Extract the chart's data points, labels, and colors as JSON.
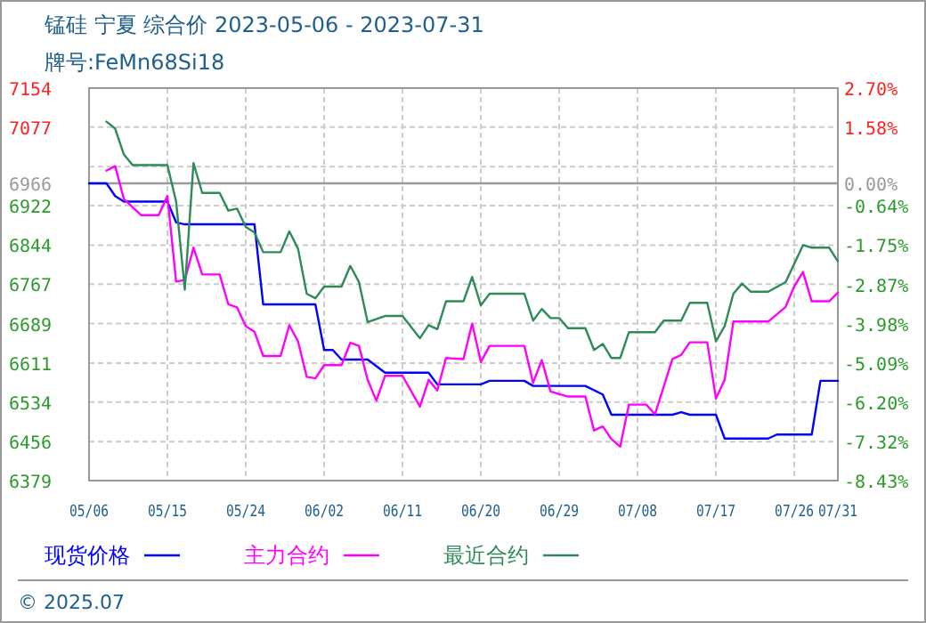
{
  "chart_data": {
    "type": "line",
    "title": "锰硅 宁夏 综合价 2023-05-06 - 2023-07-31",
    "subtitle": "牌号:FeMn68Si18",
    "annotations": [
      "© 2025.07"
    ],
    "series": [
      {
        "name": "现货价格",
        "color": "#0000ff",
        "x": [
          "--05-06",
          "--05-08",
          "--05-09",
          "--05-10",
          "--05-15",
          "--05-16",
          "--05-17",
          "--05-25",
          "--05-26",
          "--06-01",
          "--06-02",
          "--06-03",
          "--06-04",
          "--06-07",
          "--06-09",
          "--06-14",
          "--06-15",
          "--06-20",
          "--06-21",
          "--06-25",
          "--06-26",
          "--07-02",
          "--07-04",
          "--07-05",
          "--07-12",
          "--07-13",
          "--07-14",
          "--07-17",
          "--07-18",
          "--07-23",
          "--07-24",
          "--07-28",
          "--07-29",
          "--07-31"
        ],
        "values": [
          6966,
          6966,
          6941,
          6930,
          6930,
          6889,
          6885,
          6885,
          6727,
          6727,
          6637,
          6637,
          6618,
          6618,
          6592,
          6592,
          6569,
          6569,
          6576,
          6576,
          6566,
          6566,
          6549,
          6509,
          6509,
          6514,
          6509,
          6509,
          6462,
          6462,
          6470,
          6470,
          6576,
          6576
        ]
      },
      {
        "name": "主力合约",
        "color": "#ff00ff",
        "x": [
          "--05-08",
          "--05-09",
          "--05-10",
          "--05-12",
          "--05-14",
          "--05-15",
          "--05-16",
          "--05-17",
          "--05-18",
          "--05-19",
          "--05-21",
          "--05-22",
          "--05-23",
          "--05-24",
          "--05-25",
          "--05-26",
          "--05-28",
          "--05-29",
          "--05-30",
          "--05-31",
          "--06-01",
          "--06-02",
          "--06-04",
          "--06-05",
          "--06-06",
          "--06-07",
          "--06-08",
          "--06-09",
          "--06-11",
          "--06-13",
          "--06-14",
          "--06-15",
          "--06-16",
          "--06-18",
          "--06-19",
          "--06-20",
          "--06-21",
          "--06-25",
          "--06-26",
          "--06-27",
          "--06-28",
          "--06-30",
          "--07-02",
          "--07-03",
          "--07-04",
          "--07-05",
          "--07-06",
          "--07-07",
          "--07-09",
          "--07-10",
          "--07-12",
          "--07-13",
          "--07-14",
          "--07-16",
          "--07-17",
          "--07-18",
          "--07-19",
          "--07-20",
          "--07-23",
          "--07-25",
          "--07-26",
          "--07-27",
          "--07-28",
          "--07-30",
          "--07-31"
        ],
        "values": [
          6991,
          7000,
          6935,
          6903,
          6903,
          6941,
          6772,
          6775,
          6839,
          6786,
          6786,
          6727,
          6721,
          6684,
          6673,
          6625,
          6625,
          6686,
          6654,
          6584,
          6581,
          6607,
          6607,
          6651,
          6645,
          6578,
          6537,
          6586,
          6586,
          6525,
          6578,
          6557,
          6621,
          6619,
          6689,
          6613,
          6645,
          6645,
          6572,
          6617,
          6555,
          6545,
          6545,
          6478,
          6486,
          6461,
          6446,
          6529,
          6529,
          6510,
          6619,
          6627,
          6652,
          6652,
          6541,
          6578,
          6693,
          6693,
          6693,
          6722,
          6763,
          6791,
          6733,
          6733,
          6750
        ]
      },
      {
        "name": "最近合约",
        "color": "#2e8b57",
        "x": [
          "--05-08",
          "--05-09",
          "--05-10",
          "--05-11",
          "--05-15",
          "--05-16",
          "--05-17",
          "--05-18",
          "--05-19",
          "--05-21",
          "--05-22",
          "--05-23",
          "--05-24",
          "--05-25",
          "--05-26",
          "--05-28",
          "--05-29",
          "--05-30",
          "--05-31",
          "--06-01",
          "--06-02",
          "--06-04",
          "--06-05",
          "--06-06",
          "--06-07",
          "--06-09",
          "--06-11",
          "--06-13",
          "--06-14",
          "--06-15",
          "--06-16",
          "--06-18",
          "--06-19",
          "--06-20",
          "--06-21",
          "--06-25",
          "--06-26",
          "--06-27",
          "--06-28",
          "--06-29",
          "--06-30",
          "--07-02",
          "--07-03",
          "--07-04",
          "--07-05",
          "--07-06",
          "--07-07",
          "--07-10",
          "--07-11",
          "--07-13",
          "--07-14",
          "--07-16",
          "--07-17",
          "--07-18",
          "--07-19",
          "--07-20",
          "--07-21",
          "--07-23",
          "--07-25",
          "--07-27",
          "--07-28",
          "--07-30",
          "--07-31"
        ],
        "values": [
          7088,
          7074,
          7023,
          7002,
          7002,
          6930,
          6756,
          7006,
          6947,
          6947,
          6912,
          6916,
          6880,
          6869,
          6830,
          6830,
          6871,
          6837,
          6748,
          6739,
          6762,
          6762,
          6803,
          6771,
          6692,
          6704,
          6704,
          6660,
          6686,
          6678,
          6733,
          6733,
          6781,
          6725,
          6748,
          6748,
          6695,
          6718,
          6700,
          6700,
          6680,
          6680,
          6637,
          6649,
          6621,
          6621,
          6672,
          6672,
          6695,
          6695,
          6730,
          6730,
          6654,
          6684,
          6748,
          6768,
          6752,
          6752,
          6771,
          6844,
          6839,
          6839,
          6812
        ]
      }
    ],
    "xlim": [
      "--05-06",
      "--07-31"
    ],
    "xticks": [
      {
        "value": "--05-06",
        "label": "05/06"
      },
      {
        "value": "--05-15",
        "label": "05/15"
      },
      {
        "value": "--05-24",
        "label": "05/24"
      },
      {
        "value": "--06-02",
        "label": "06/02"
      },
      {
        "value": "--06-11",
        "label": "06/11"
      },
      {
        "value": "--06-20",
        "label": "06/20"
      },
      {
        "value": "--06-29",
        "label": "06/29"
      },
      {
        "value": "--07-08",
        "label": "07/08"
      },
      {
        "value": "--07-17",
        "label": "07/17"
      },
      {
        "value": "--07-26",
        "label": "07/26"
      },
      {
        "value": "--07-31",
        "label": "07/31"
      }
    ],
    "ylim": [
      6379,
      7154
    ],
    "yticks": [
      7154,
      7077,
      {
        "value": 6999,
        "label": null
      },
      6966,
      6922,
      6844,
      6767,
      6689,
      6611,
      6534,
      6456,
      6379
    ],
    "y2lim": [
      -8.43,
      2.7
    ],
    "y2ticks": [
      {
        "value": 2.7,
        "label": "2.70%"
      },
      {
        "value": 1.58,
        "label": "1.58%"
      },
      {
        "value": 0,
        "label": "0.00%"
      },
      {
        "value": -0.64,
        "label": "-0.64%"
      },
      {
        "value": -1.75,
        "label": "-1.75%"
      },
      {
        "value": -2.87,
        "label": "-2.87%"
      },
      {
        "value": -3.98,
        "label": "-3.98%"
      },
      {
        "value": -5.09,
        "label": "-5.09%"
      },
      {
        "value": -6.2,
        "label": "-6.20%"
      },
      {
        "value": -7.32,
        "label": "-7.32%"
      },
      {
        "value": -8.43,
        "label": "-8.43%"
      }
    ],
    "ref_lines": [
      {
        "axis": "y",
        "value": 6966,
        "color": "#999999"
      }
    ],
    "grid": true,
    "legend": "bottom"
  }
}
